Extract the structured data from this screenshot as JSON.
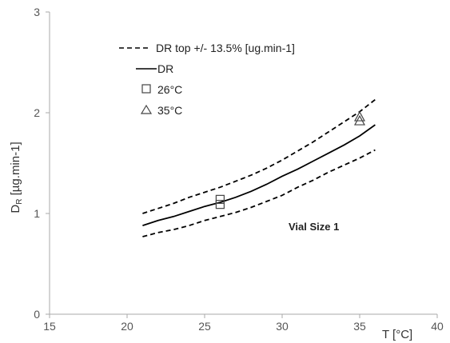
{
  "chart_data": {
    "type": "line",
    "title": "",
    "xlabel": "T [°C]",
    "ylabel_main": "D",
    "ylabel_sub": "R",
    "ylabel_rest": " [µg.min-1]",
    "xlim": [
      15,
      40
    ],
    "ylim": [
      0,
      3
    ],
    "x_ticks": [
      15,
      20,
      25,
      30,
      35,
      40
    ],
    "y_ticks": [
      0,
      1,
      2,
      3
    ],
    "grid": false,
    "legend_position": "top-left",
    "legend": [
      {
        "label": "DR top +/- 13.5% [ug.min-1]",
        "style": "dashed"
      },
      {
        "label": "DR",
        "style": "solid"
      },
      {
        "label": "26°C",
        "style": "square-marker"
      },
      {
        "label": "35°C",
        "style": "triangle-marker"
      }
    ],
    "series": [
      {
        "style": "solid",
        "color": "#000000",
        "x": [
          21,
          22,
          23,
          24,
          25,
          26,
          27,
          28,
          29,
          30,
          31,
          32,
          33,
          34,
          35,
          36
        ],
        "y": [
          0.88,
          0.93,
          0.97,
          1.02,
          1.07,
          1.11,
          1.16,
          1.22,
          1.29,
          1.37,
          1.44,
          1.52,
          1.6,
          1.68,
          1.77,
          1.88
        ]
      },
      {
        "style": "dashed",
        "color": "#000000",
        "x": [
          21,
          22,
          23,
          24,
          25,
          26,
          27,
          28,
          29,
          30,
          31,
          32,
          33,
          34,
          35,
          36
        ],
        "y": [
          1.0,
          1.05,
          1.1,
          1.16,
          1.21,
          1.26,
          1.32,
          1.38,
          1.45,
          1.53,
          1.62,
          1.71,
          1.81,
          1.91,
          2.01,
          2.13
        ]
      },
      {
        "style": "dashed",
        "color": "#000000",
        "x": [
          21,
          22,
          23,
          24,
          25,
          26,
          27,
          28,
          29,
          30,
          31,
          32,
          33,
          34,
          35,
          36
        ],
        "y": [
          0.77,
          0.81,
          0.84,
          0.88,
          0.93,
          0.97,
          1.01,
          1.06,
          1.12,
          1.18,
          1.26,
          1.33,
          1.41,
          1.48,
          1.55,
          1.63
        ]
      }
    ],
    "points": [
      {
        "marker": "square",
        "x": 26,
        "y": 1.14
      },
      {
        "marker": "square",
        "x": 26,
        "y": 1.09
      },
      {
        "marker": "triangle",
        "x": 35,
        "y": 1.96
      },
      {
        "marker": "triangle",
        "x": 35,
        "y": 1.92
      }
    ],
    "annotation": "Vial Size 1"
  }
}
